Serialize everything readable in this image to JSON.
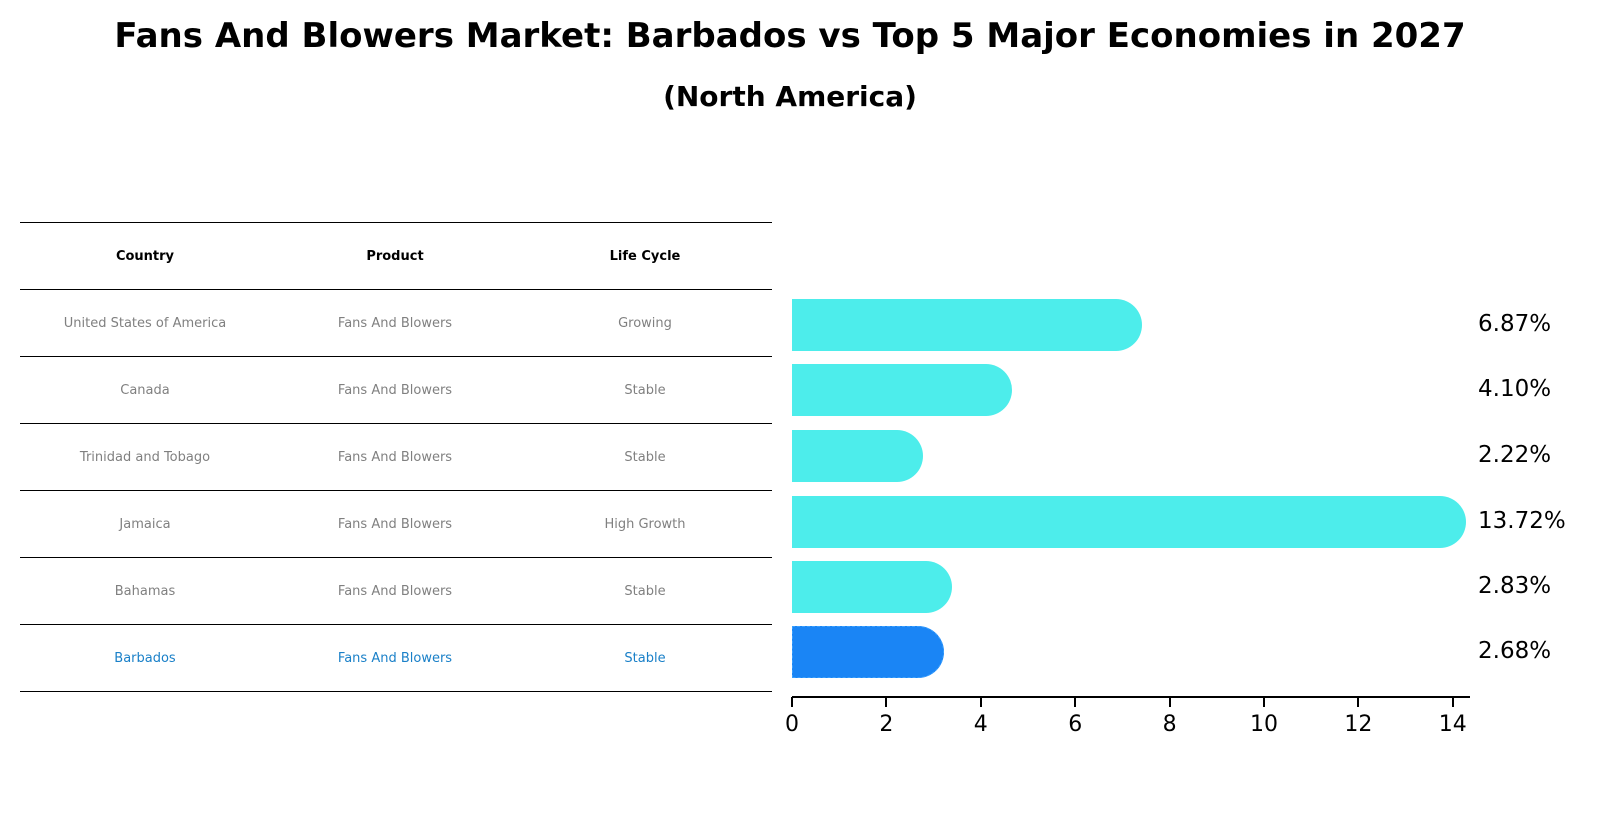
{
  "title": "Fans And Blowers Market: Barbados vs Top 5 Major Economies in 2027",
  "subtitle": "(North America)",
  "table": {
    "headers": [
      "Country",
      "Product",
      "Life Cycle"
    ],
    "rows": [
      {
        "country": "United States of America",
        "product": "Fans And Blowers",
        "life_cycle": "Growing"
      },
      {
        "country": "Canada",
        "product": "Fans And Blowers",
        "life_cycle": "Stable"
      },
      {
        "country": "Trinidad and Tobago",
        "product": "Fans And Blowers",
        "life_cycle": "Stable"
      },
      {
        "country": "Jamaica",
        "product": "Fans And Blowers",
        "life_cycle": "High Growth"
      },
      {
        "country": "Bahamas",
        "product": "Fans And Blowers",
        "life_cycle": "Stable"
      },
      {
        "country": "Barbados",
        "product": "Fans And Blowers",
        "life_cycle": "Stable"
      }
    ]
  },
  "colors": {
    "bar": "#4dedeb",
    "highlight_bar": "#1a85f5",
    "highlight_text": "#1a80c8",
    "muted_text": "#808080"
  },
  "chart_data": {
    "type": "bar",
    "orientation": "horizontal",
    "title": "Fans And Blowers Market: Barbados vs Top 5 Major Economies in 2027",
    "subtitle": "(North America)",
    "categories": [
      "United States of America",
      "Canada",
      "Trinidad and Tobago",
      "Jamaica",
      "Bahamas",
      "Barbados"
    ],
    "values": [
      6.87,
      4.1,
      2.22,
      13.72,
      2.83,
      2.68
    ],
    "value_labels": [
      "6.87%",
      "4.10%",
      "2.22%",
      "13.72%",
      "2.83%",
      "2.68%"
    ],
    "highlight": "Barbados",
    "xlabel": "",
    "ylabel": "",
    "xlim": [
      0,
      14.4
    ],
    "xticks": [
      "0",
      "2",
      "4",
      "6",
      "8",
      "10",
      "12",
      "14"
    ],
    "grid": false,
    "legend": null
  }
}
